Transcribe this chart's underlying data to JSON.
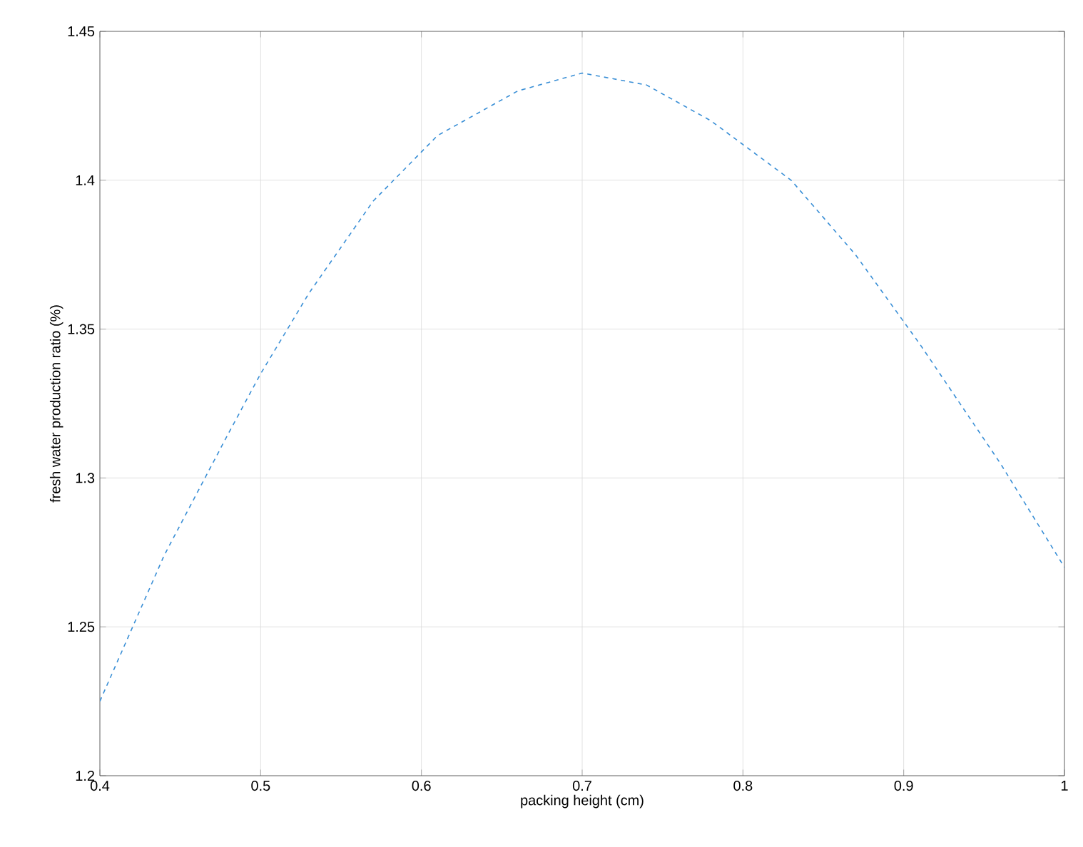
{
  "chart_data": {
    "type": "line",
    "xlabel": "packing height (cm)",
    "ylabel": "fresh water production ratio (%)",
    "x": [
      0.4,
      0.44,
      0.48,
      0.5,
      0.53,
      0.57,
      0.61,
      0.66,
      0.7,
      0.74,
      0.78,
      0.83,
      0.87,
      0.91,
      0.96,
      1.0
    ],
    "series": [
      {
        "color": "#3a8fd6",
        "values": [
          1.225,
          1.274,
          1.315,
          1.335,
          1.362,
          1.393,
          1.415,
          1.43,
          1.436,
          1.432,
          1.42,
          1.4,
          1.375,
          1.345,
          1.305,
          1.27
        ]
      }
    ],
    "xlim": [
      0.4,
      1.0
    ],
    "ylim": [
      1.2,
      1.45
    ],
    "xticks": [
      0.4,
      0.5,
      0.6,
      0.7,
      0.8,
      0.9,
      1
    ],
    "yticks": [
      1.2,
      1.25,
      1.3,
      1.35,
      1.4,
      1.45
    ],
    "grid": true,
    "line_style": "dashed",
    "marker": "none"
  }
}
